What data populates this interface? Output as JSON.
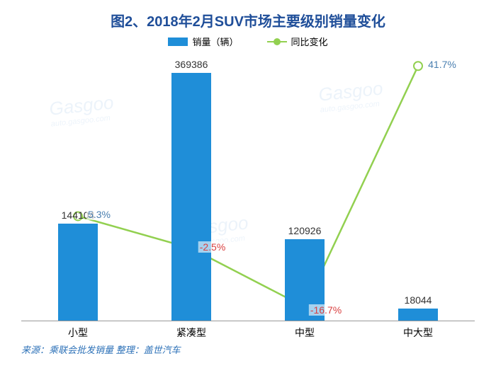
{
  "title": {
    "text": "图2、2018年2月SUV市场主要级别销量变化",
    "fontsize": 20,
    "color": "#1f4e99",
    "font_weight": "bold"
  },
  "legend": {
    "bar": {
      "label": "销量（辆）",
      "color": "#1f8ed8"
    },
    "line": {
      "label": "同比变化",
      "color": "#92d050"
    }
  },
  "chart": {
    "type": "bar+line",
    "categories": [
      "小型",
      "紧凑型",
      "中型",
      "中大型"
    ],
    "bar_values": [
      144104,
      369386,
      120926,
      18044
    ],
    "bar_color": "#1f8ed8",
    "bar_width_ratio": 0.35,
    "bar_label_fontsize": 14,
    "bar_label_color": "#333333",
    "line_values_pct": [
      5.3,
      -2.5,
      -16.7,
      41.7
    ],
    "line_labels": [
      "5.3%",
      "-2.5%",
      "-16.7%",
      "41.7%"
    ],
    "line_color": "#92d050",
    "line_width": 2.5,
    "marker_radius": 6,
    "label_color_positive": "#4a7fb0",
    "label_color_negative": "#d94040",
    "y_max_bar": 400000,
    "y_min_pct": -20,
    "y_max_pct": 45,
    "background_color": "#ffffff",
    "axis_color": "#999999",
    "cat_label_fontsize": 14
  },
  "source": {
    "prefix": "来源：",
    "src": "乘联会批发销量",
    "mid": "   整理：",
    "org": "盖世汽车",
    "color": "#2e72b8"
  },
  "watermark": {
    "text": "Gasgoo",
    "sub": "auto.gasgoo.com"
  }
}
